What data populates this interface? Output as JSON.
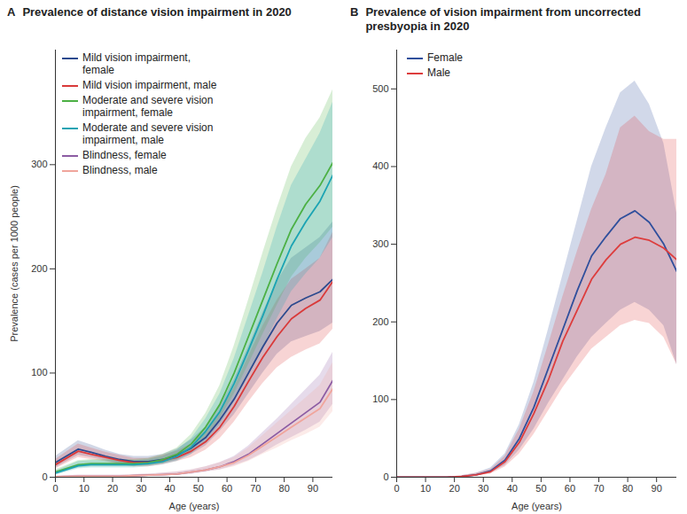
{
  "chart_data": [
    {
      "type": "line",
      "panel": "A",
      "title": "Prevalence of distance vision impairment in 2020",
      "x_label": "Age (years)",
      "y_label": "Prevalence (cases per 1000 people)",
      "xlim": [
        0,
        97
      ],
      "xticks": [
        0,
        10,
        20,
        30,
        40,
        50,
        60,
        70,
        80,
        90
      ],
      "ylim": [
        0,
        410
      ],
      "yticks": [
        0,
        100,
        200,
        300
      ],
      "grid": false,
      "legend": "upper left",
      "x": [
        0,
        8,
        12.5,
        17.5,
        22.5,
        27.5,
        32.5,
        37.5,
        42.5,
        47.5,
        52.5,
        57.5,
        62.5,
        67.5,
        72.5,
        77.5,
        82.5,
        87.5,
        92.5,
        97
      ],
      "series": [
        {
          "name": "Mild vision impairment, female",
          "color": "#2c4a8e",
          "values": [
            14,
            27,
            24,
            20,
            17,
            15,
            15,
            17,
            21,
            28,
            38,
            55,
            75,
            100,
            125,
            148,
            165,
            172,
            178,
            190
          ],
          "lower": [
            9,
            21,
            19,
            16,
            13,
            11,
            11,
            13,
            16,
            22,
            30,
            44,
            60,
            80,
            100,
            118,
            130,
            135,
            140,
            148
          ],
          "upper": [
            20,
            35,
            31,
            26,
            22,
            20,
            20,
            22,
            27,
            36,
            48,
            68,
            94,
            125,
            158,
            188,
            210,
            220,
            230,
            245
          ]
        },
        {
          "name": "Mild vision impairment, male",
          "color": "#d93a3a",
          "values": [
            12,
            25,
            22,
            19,
            16,
            14,
            14,
            16,
            19,
            25,
            34,
            48,
            68,
            92,
            115,
            135,
            152,
            162,
            170,
            188
          ],
          "lower": [
            8,
            19,
            17,
            15,
            12,
            10,
            10,
            12,
            15,
            19,
            26,
            37,
            53,
            72,
            90,
            105,
            115,
            122,
            128,
            142
          ],
          "upper": [
            17,
            32,
            28,
            24,
            21,
            18,
            18,
            21,
            25,
            32,
            44,
            62,
            86,
            116,
            145,
            170,
            190,
            200,
            210,
            235
          ]
        },
        {
          "name": "Moderate and severe vision impairment, female",
          "color": "#4cb044",
          "values": [
            5,
            12,
            13,
            13,
            13,
            13,
            14,
            17,
            22,
            32,
            48,
            70,
            100,
            135,
            170,
            205,
            238,
            262,
            280,
            302
          ],
          "lower": [
            3,
            9,
            10,
            10,
            10,
            10,
            11,
            13,
            17,
            25,
            38,
            56,
            80,
            108,
            137,
            165,
            192,
            210,
            225,
            240
          ],
          "upper": [
            7,
            16,
            17,
            17,
            17,
            17,
            18,
            22,
            28,
            41,
            61,
            88,
            126,
            170,
            215,
            258,
            298,
            325,
            345,
            372
          ]
        },
        {
          "name": "Moderate and severe vision impairment, male",
          "color": "#1ba3b3",
          "values": [
            4,
            11,
            12,
            12,
            12,
            12,
            13,
            15,
            20,
            29,
            44,
            63,
            90,
            122,
            155,
            190,
            222,
            245,
            265,
            290
          ],
          "lower": [
            2,
            8,
            9,
            9,
            9,
            9,
            10,
            12,
            15,
            22,
            34,
            50,
            72,
            97,
            124,
            152,
            178,
            195,
            210,
            230
          ],
          "upper": [
            6,
            15,
            16,
            16,
            16,
            16,
            17,
            20,
            26,
            37,
            56,
            80,
            114,
            155,
            196,
            240,
            280,
            305,
            330,
            360
          ]
        },
        {
          "name": "Blindness, female",
          "color": "#8c5ca3",
          "values": [
            0.5,
            1,
            1,
            1,
            1,
            1.5,
            2,
            2.5,
            3,
            5,
            7,
            10,
            15,
            22,
            32,
            42,
            52,
            62,
            72,
            93
          ],
          "lower": [
            0.2,
            0.5,
            0.5,
            0.5,
            0.5,
            1,
            1,
            1.5,
            2,
            3,
            5,
            7,
            11,
            16,
            23,
            31,
            38,
            45,
            53,
            70
          ],
          "upper": [
            1,
            2,
            2,
            2,
            2,
            2.5,
            3,
            4,
            5,
            7,
            10,
            14,
            20,
            30,
            43,
            56,
            70,
            84,
            98,
            120
          ]
        },
        {
          "name": "Blindness, male",
          "color": "#f0a59c",
          "values": [
            0.5,
            1,
            1,
            1,
            1,
            1.5,
            2,
            2.5,
            3,
            5,
            7,
            10,
            14,
            21,
            30,
            39,
            48,
            57,
            66,
            85
          ],
          "lower": [
            0.2,
            0.5,
            0.5,
            0.5,
            0.5,
            1,
            1,
            1.5,
            2,
            3,
            5,
            7,
            10,
            15,
            22,
            28,
            35,
            41,
            48,
            63
          ],
          "upper": [
            1,
            2,
            2,
            2,
            2,
            2.5,
            3,
            4,
            5,
            7,
            10,
            14,
            19,
            28,
            40,
            52,
            64,
            76,
            88,
            110
          ]
        }
      ]
    },
    {
      "type": "line",
      "panel": "B",
      "title": "Prevalence of vision impairment from uncorrected presbyopia in 2020",
      "x_label": "Age (years)",
      "xlim": [
        0,
        97
      ],
      "xticks": [
        0,
        10,
        20,
        30,
        40,
        50,
        60,
        70,
        80,
        90
      ],
      "ylim": [
        0,
        550
      ],
      "yticks": [
        0,
        100,
        200,
        300,
        400,
        500
      ],
      "grid": false,
      "legend": "upper left",
      "x": [
        0,
        10,
        17.5,
        22.5,
        27.5,
        32.5,
        37.5,
        42.5,
        47.5,
        52.5,
        57.5,
        62.5,
        67.5,
        72.5,
        77.5,
        82.5,
        87.5,
        92.5,
        97
      ],
      "series": [
        {
          "name": "Female",
          "color": "#2f4f9c",
          "values": [
            0,
            0,
            0,
            1,
            3,
            8,
            22,
            50,
            90,
            140,
            190,
            240,
            285,
            310,
            333,
            343,
            328,
            300,
            265
          ],
          "lower": [
            0,
            0,
            0,
            0.5,
            2,
            5,
            15,
            35,
            62,
            95,
            125,
            155,
            180,
            198,
            215,
            225,
            215,
            195,
            145
          ],
          "upper": [
            0,
            0,
            0,
            2,
            5,
            12,
            30,
            68,
            122,
            190,
            260,
            330,
            400,
            450,
            495,
            510,
            480,
            430,
            340
          ]
        },
        {
          "name": "Male",
          "color": "#dd3d3d",
          "values": [
            0,
            0,
            0,
            1,
            3,
            7,
            20,
            45,
            82,
            125,
            175,
            215,
            255,
            280,
            300,
            309,
            305,
            295,
            280
          ],
          "lower": [
            0,
            0,
            0,
            0.5,
            2,
            4,
            13,
            30,
            55,
            85,
            115,
            140,
            165,
            180,
            195,
            202,
            198,
            180,
            145
          ],
          "upper": [
            0,
            0,
            0,
            2,
            5,
            10,
            27,
            62,
            110,
            170,
            232,
            290,
            345,
            390,
            450,
            465,
            445,
            435,
            435
          ]
        }
      ]
    }
  ]
}
